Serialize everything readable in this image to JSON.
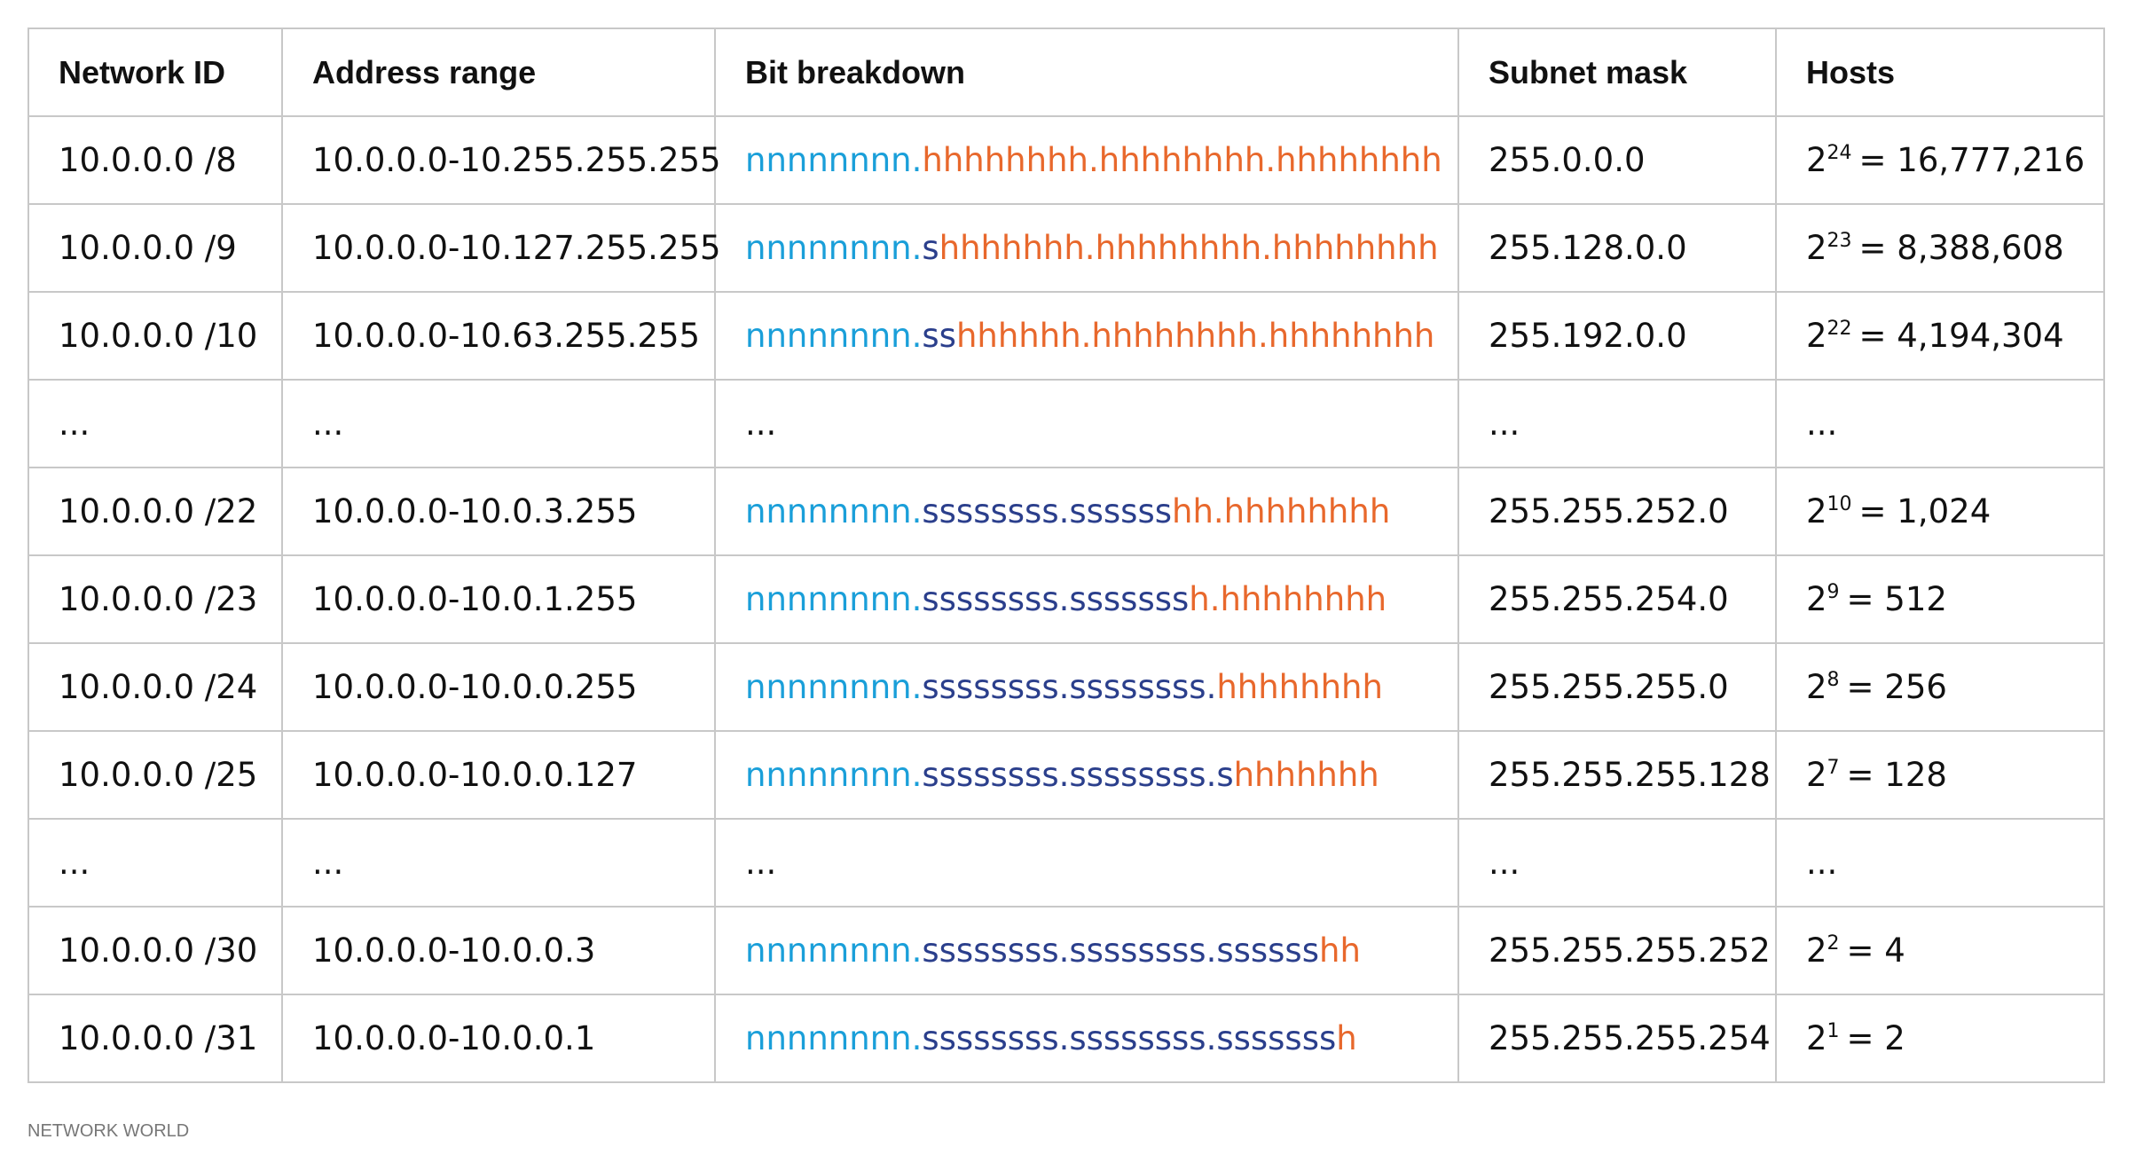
{
  "table": {
    "header": [
      "Network ID",
      "Address range",
      "Bit breakdown",
      "Subnet mask",
      "Hosts"
    ],
    "rows": [
      {
        "network_id": "10.0.0.0 /8",
        "address_range": "10.0.0.0-10.255.255.255",
        "bits": {
          "network": "nnnnnnnn.",
          "host": "hhhhhhhh.hhhhhhhh.hhhhhhhh"
        },
        "mask": "255.0.0.0",
        "hosts": {
          "base": "2",
          "exponent": "24",
          "value": "= 16,777,216"
        }
      },
      {
        "network_id": "10.0.0.0 /9",
        "address_range": "10.0.0.0-10.127.255.255",
        "bits": {
          "network": "nnnnnnnn.",
          "subnet": "s",
          "host": "hhhhhhh.hhhhhhhh.hhhhhhhh"
        },
        "mask": "255.128.0.0",
        "hosts": {
          "base": "2",
          "exponent": "23",
          "value": "= 8,388,608"
        }
      },
      {
        "network_id": "10.0.0.0 /10",
        "address_range": "10.0.0.0-10.63.255.255",
        "bits": {
          "network": "nnnnnnnn.",
          "subnet": "ss",
          "host": "hhhhhh.hhhhhhhh.hhhhhhhh"
        },
        "mask": "255.192.0.0",
        "hosts": {
          "base": "2",
          "exponent": "22",
          "value": "= 4,194,304"
        }
      },
      {
        "network_id": "...",
        "address_range": "...",
        "bits": "...",
        "mask": "...",
        "hosts": "..."
      },
      {
        "network_id": "10.0.0.0 /22",
        "address_range": "10.0.0.0-10.0.3.255",
        "bits": {
          "network": "nnnnnnnn.",
          "subnet": "ssssssss.ssssss",
          "host": "hh.hhhhhhhh"
        },
        "mask": "255.255.252.0",
        "hosts": {
          "base": "2",
          "exponent": "10",
          "value": "= 1,024"
        }
      },
      {
        "network_id": "10.0.0.0 /23",
        "address_range": "10.0.0.0-10.0.1.255",
        "bits": {
          "network": "nnnnnnnn.",
          "subnet": "ssssssss.sssssss",
          "host": "h.hhhhhhhh"
        },
        "mask": "255.255.254.0",
        "hosts": {
          "base": "2",
          "exponent": "9",
          "value": "= 512"
        }
      },
      {
        "network_id": "10.0.0.0 /24",
        "address_range": "10.0.0.0-10.0.0.255",
        "bits": {
          "network": "nnnnnnnn.",
          "subnet": "ssssssss.ssssssss.",
          "host": "hhhhhhhh"
        },
        "mask": "255.255.255.0",
        "hosts": {
          "base": "2",
          "exponent": "8",
          "value": "= 256"
        }
      },
      {
        "network_id": "10.0.0.0 /25",
        "address_range": "10.0.0.0-10.0.0.127",
        "bits": {
          "network": "nnnnnnnn.",
          "subnet": "ssssssss.ssssssss.s",
          "host": "hhhhhhh"
        },
        "mask": "255.255.255.128",
        "hosts": {
          "base": "2",
          "exponent": "7",
          "value": "= 128"
        }
      },
      {
        "network_id": "...",
        "address_range": "...",
        "bits": "...",
        "mask": "...",
        "hosts": "..."
      },
      {
        "network_id": "10.0.0.0 /30",
        "address_range": "10.0.0.0-10.0.0.3",
        "bits": {
          "network": "nnnnnnnn.",
          "subnet": "ssssssss.ssssssss.ssssss",
          "host": "hh"
        },
        "mask": "255.255.255.252",
        "hosts": {
          "base": "2",
          "exponent": "2",
          "value": "= 4"
        }
      },
      {
        "network_id": "10.0.0.0 /31",
        "address_range": "10.0.0.0-10.0.0.1",
        "bits": {
          "network": "nnnnnnnn.",
          "subnet": "ssssssss.ssssssss.sssssss",
          "host": "h"
        },
        "mask": "255.255.255.254",
        "hosts": {
          "base": "2",
          "exponent": "1",
          "value": "= 2"
        }
      }
    ]
  },
  "footer": "NETWORK WORLD"
}
